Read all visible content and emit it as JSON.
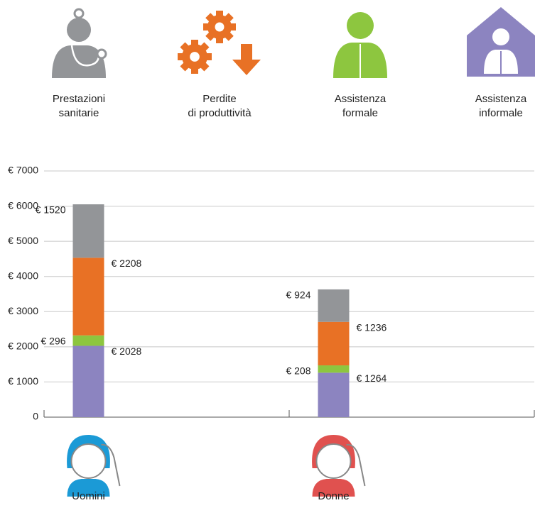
{
  "chart_data": {
    "type": "stacked_bar",
    "categories": [
      "Uomini",
      "Donne"
    ],
    "series": [
      {
        "name": "Prestazioni\nsanitarie",
        "color": "#939598",
        "values": [
          1520,
          924
        ],
        "value_labels": [
          "€ 1520",
          "€ 924"
        ]
      },
      {
        "name": "Perdite\ndi produttività",
        "color": "#e87125",
        "values": [
          2208,
          1236
        ],
        "value_labels": [
          "€ 2208",
          "€ 1236"
        ]
      },
      {
        "name": "Assistenza\nformale",
        "color": "#8dc63f",
        "values": [
          296,
          208
        ],
        "value_labels": [
          "€ 296",
          "€ 208"
        ]
      },
      {
        "name": "Assistenza\ninformale",
        "color": "#8c84c0",
        "values": [
          2028,
          1264
        ],
        "value_labels": [
          "€ 2028",
          "€ 1264"
        ]
      }
    ],
    "ylim": [
      0,
      7000
    ],
    "yticks": [
      0,
      {
        "value": 1000,
        "label": "€ 1000"
      },
      {
        "value": 2000,
        "label": "€ 2000"
      },
      {
        "value": 3000,
        "label": "€ 3000"
      },
      {
        "value": 4000,
        "label": "€ 4000"
      },
      {
        "value": 5000,
        "label": "€ 5000"
      },
      {
        "value": 6000,
        "label": "€ 6000"
      },
      {
        "value": 7000,
        "label": "€ 7000"
      }
    ],
    "grid": true,
    "category_colors": [
      "#1b9ad6",
      "#e0514f"
    ]
  }
}
